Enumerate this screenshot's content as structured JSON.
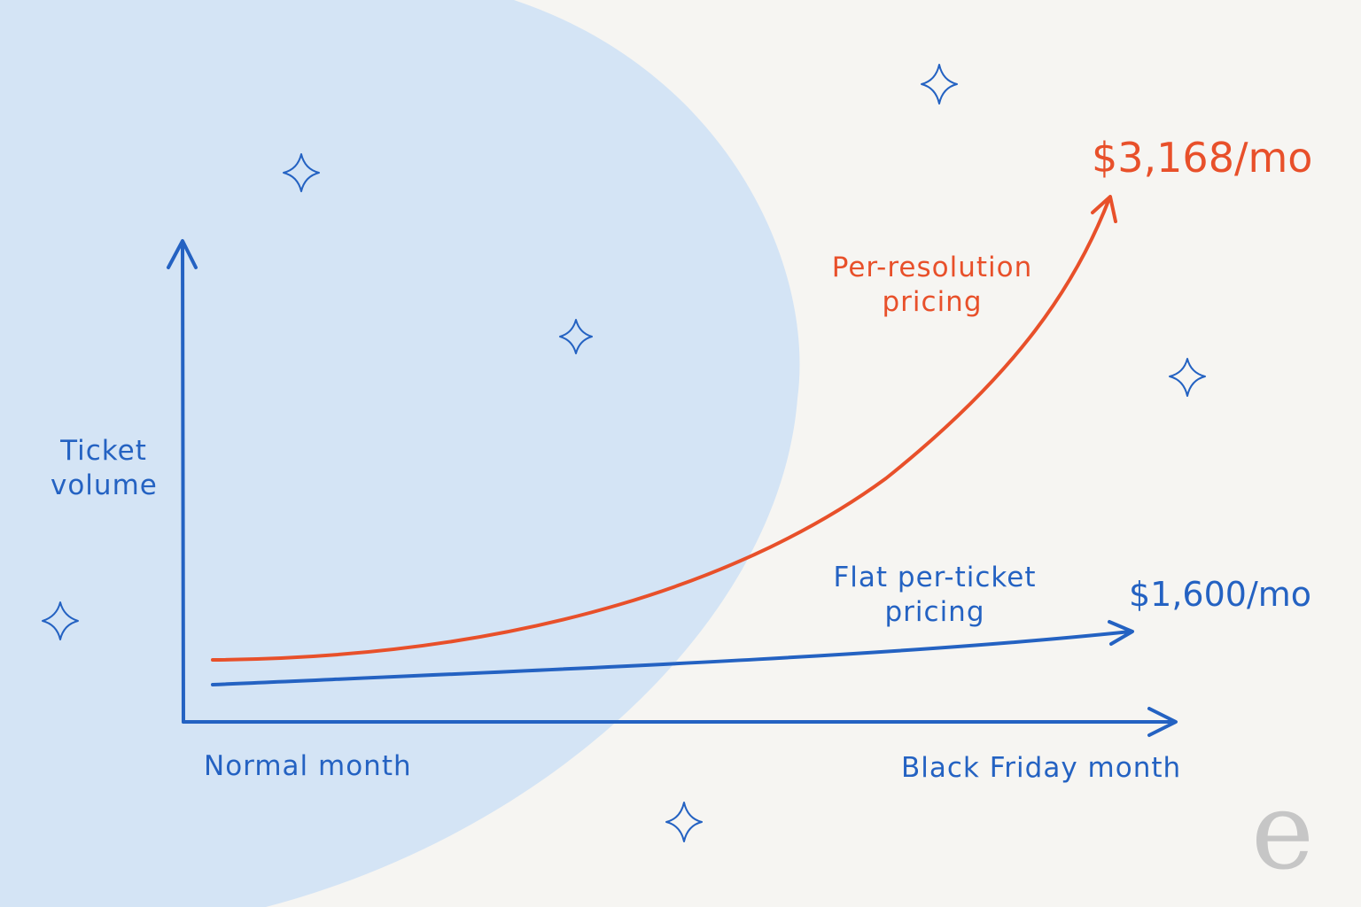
{
  "axes": {
    "y_label": "Ticket volume",
    "x_start": "Normal month",
    "x_end": "Black Friday month"
  },
  "curves": [
    {
      "label": "Per-resolution pricing",
      "end_label": "$3,168/mo"
    },
    {
      "label": "Flat per-ticket pricing",
      "end_label": "$1,600/mo"
    }
  ],
  "logo": "e"
}
